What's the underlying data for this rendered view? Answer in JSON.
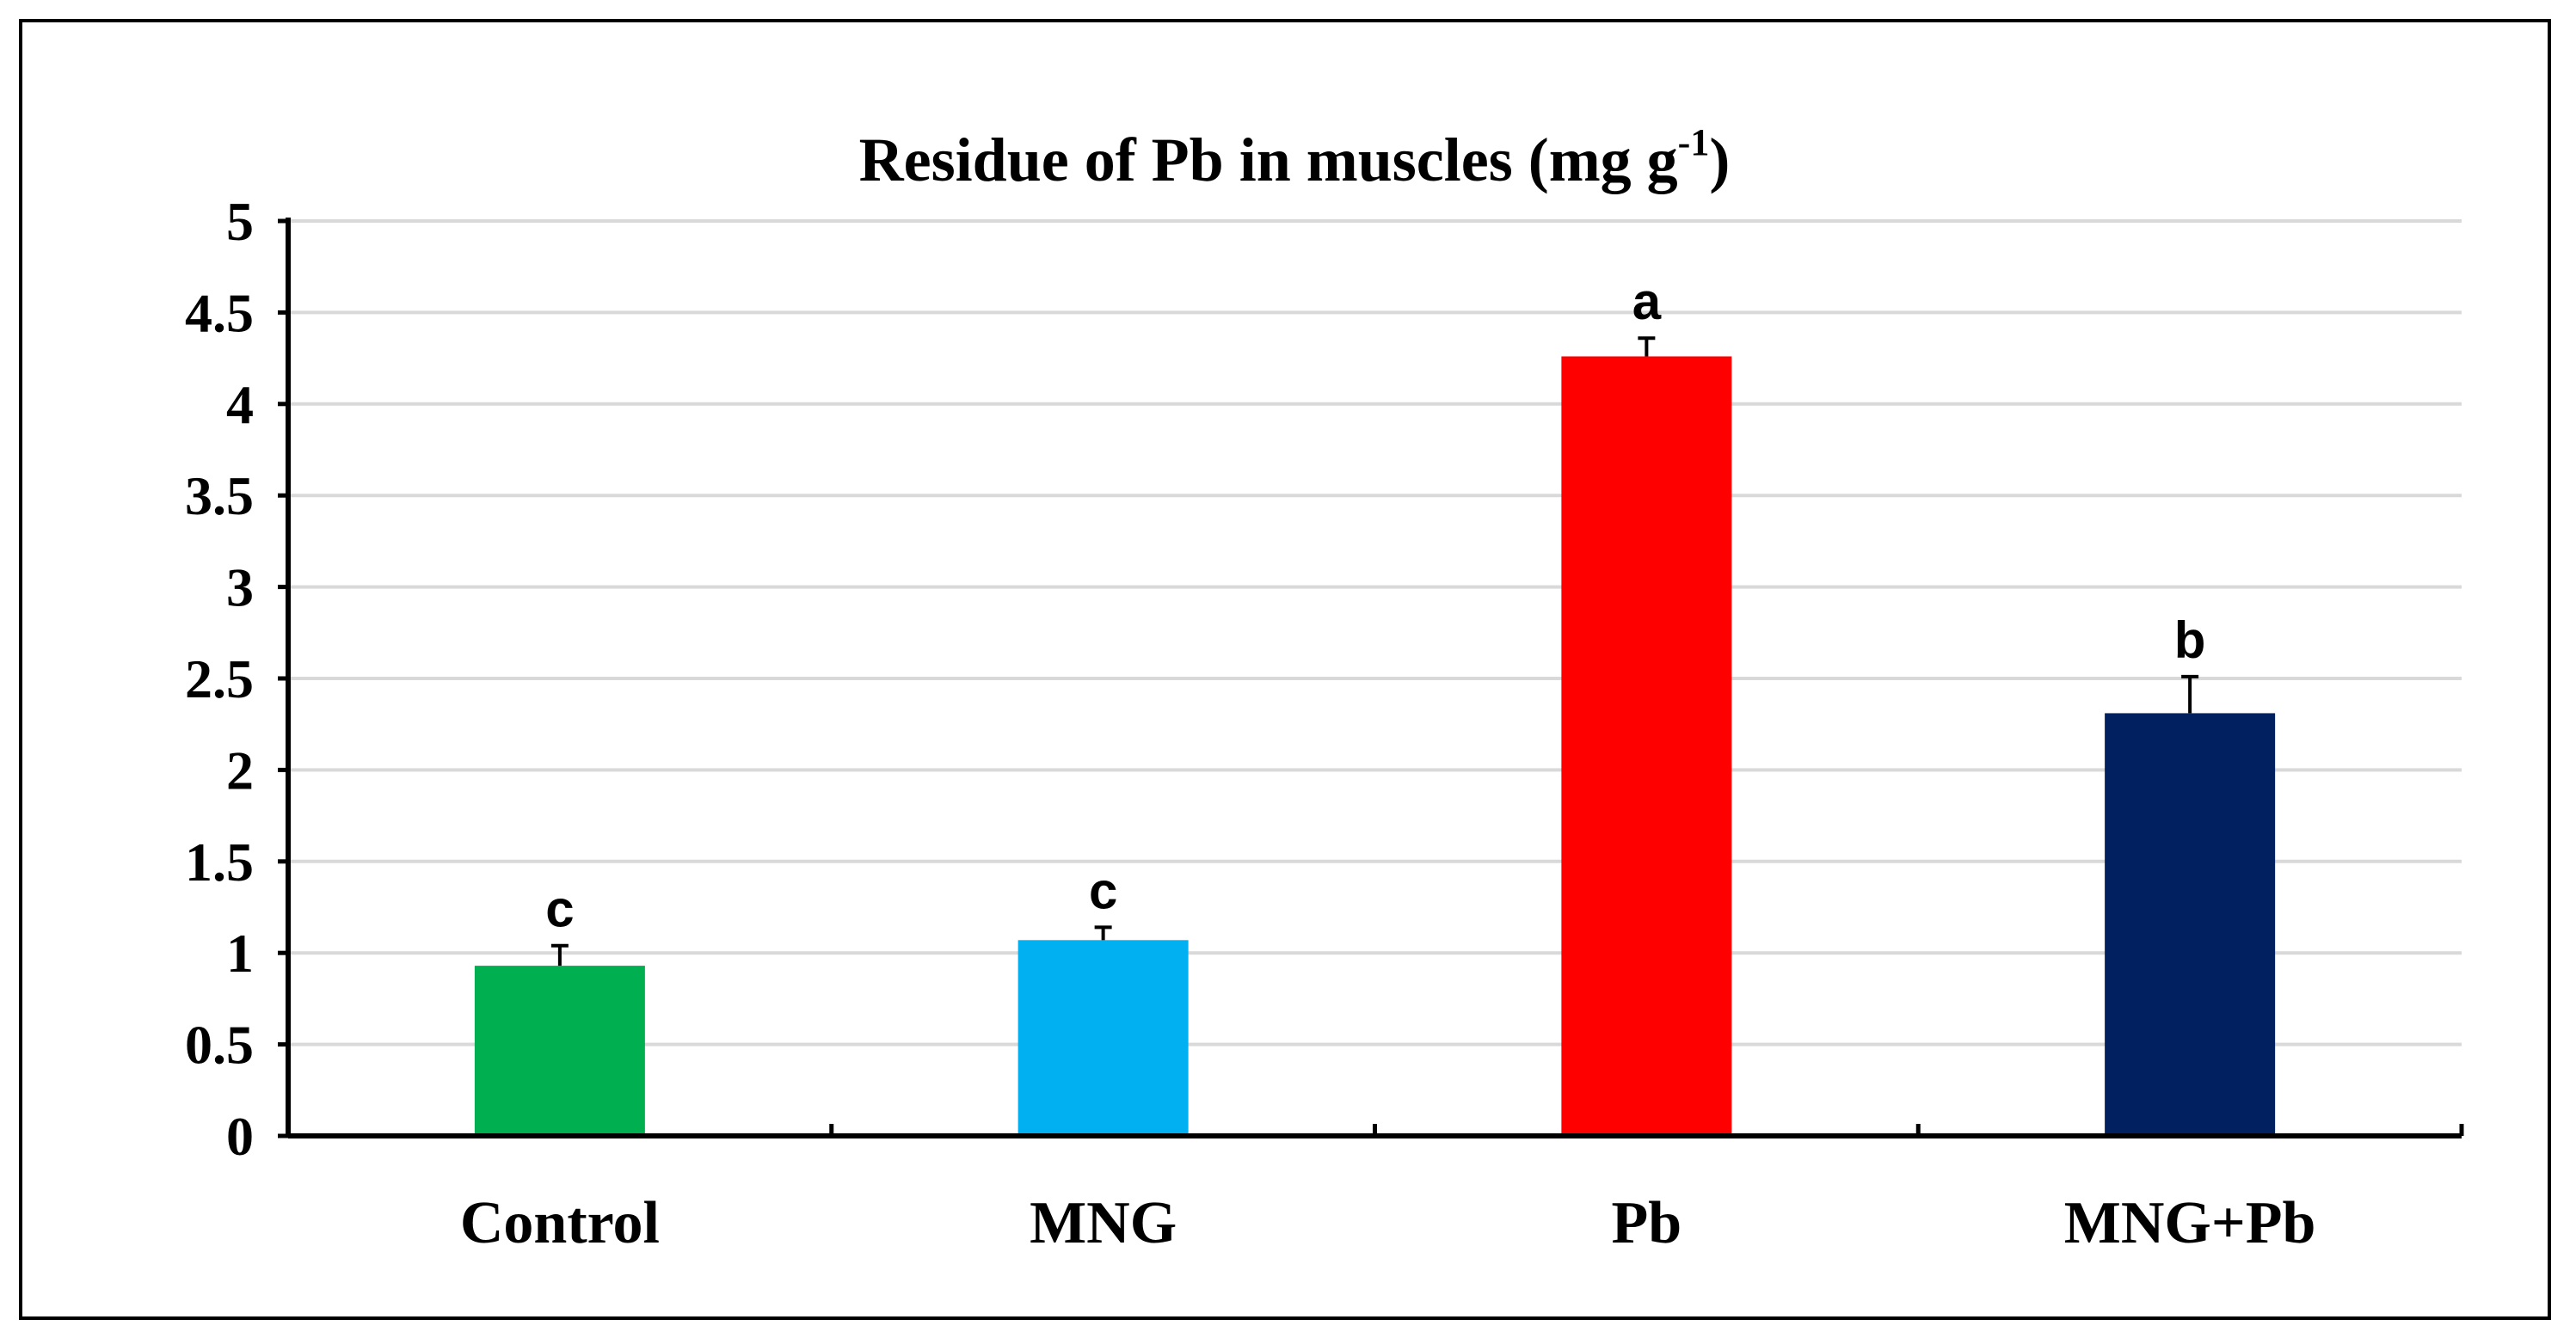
{
  "chart_data": {
    "type": "bar",
    "title": "Residue of Pb in muscles (mg g",
    "title_superscript": "-1",
    "title_suffix": ")",
    "xlabel": "",
    "ylabel": "",
    "categories": [
      "Control",
      "MNG",
      "Pb",
      "MNG+Pb"
    ],
    "values": [
      0.93,
      1.07,
      4.26,
      2.31
    ],
    "errors": [
      0.11,
      0.07,
      0.1,
      0.2
    ],
    "significance": [
      "c",
      "c",
      "a",
      "b"
    ],
    "colors": [
      "#00b050",
      "#00b0f0",
      "#ff0000",
      "#002060"
    ],
    "ylim": [
      0,
      5
    ],
    "yticks": [
      0,
      0.5,
      1,
      1.5,
      2,
      2.5,
      3,
      3.5,
      4,
      4.5,
      5
    ],
    "ytick_labels": [
      "0",
      "0.5",
      "1",
      "1.5",
      "2",
      "2.5",
      "3",
      "3.5",
      "4",
      "4.5",
      "5"
    ],
    "grid": true,
    "grid_color": "#d9d9d9",
    "legend": "none"
  }
}
